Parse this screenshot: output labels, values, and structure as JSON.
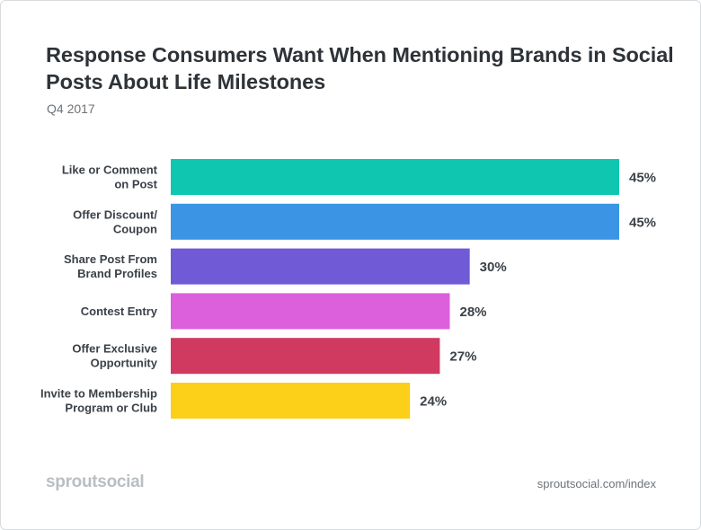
{
  "header": {
    "title": "Response Consumers Want When Mentioning Brands in Social Posts About Life Milestones",
    "subtitle": "Q4 2017"
  },
  "footer": {
    "brand": "sproutsocial",
    "source": "sproutsocial.com/index"
  },
  "chart_data": {
    "type": "bar",
    "orientation": "horizontal",
    "title": "Response Consumers Want When Mentioning Brands in Social Posts About Life Milestones",
    "subtitle": "Q4 2017",
    "categories": [
      [
        "Like or Comment",
        "on Post"
      ],
      [
        "Offer Discount/",
        "Coupon"
      ],
      [
        "Share Post From",
        "Brand Profiles"
      ],
      [
        "Contest Entry"
      ],
      [
        "Offer Exclusive",
        "Opportunity"
      ],
      [
        "Invite to Membership",
        "Program or Club"
      ]
    ],
    "values": [
      45,
      45,
      30,
      28,
      27,
      24
    ],
    "value_labels": [
      "45%",
      "45%",
      "30%",
      "28%",
      "27%",
      "24%"
    ],
    "colors": [
      "#0fc6b0",
      "#3b95e4",
      "#705ad5",
      "#dc5fdc",
      "#d03a61",
      "#fccf18"
    ],
    "unit": "%",
    "xlim": [
      0,
      45
    ],
    "xlabel": "",
    "ylabel": "",
    "grid": false,
    "legend": "none"
  }
}
